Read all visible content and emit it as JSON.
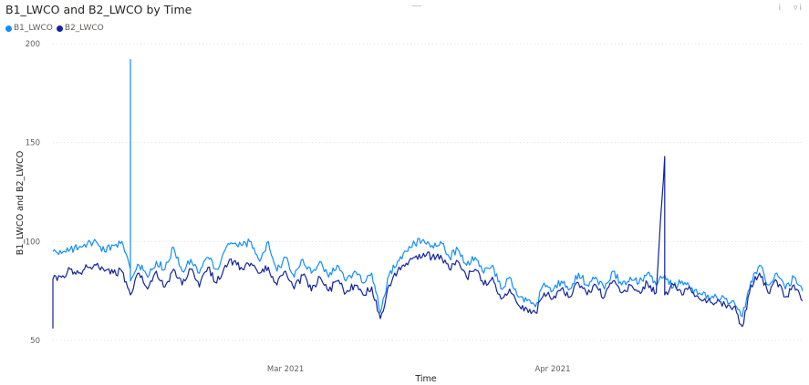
{
  "chart_data": {
    "type": "line",
    "title": "B1_LWCO and B2_LWCO by Time",
    "xlabel": "Time",
    "ylabel": "B1_LWCO and B2_LWCO",
    "ylim": [
      50,
      200
    ],
    "xlim": [
      "2021-02-02",
      "2021-04-30"
    ],
    "y_ticks": [
      "50",
      "100",
      "150",
      "200"
    ],
    "x_ticks": [
      {
        "date": "2021-03-01",
        "label": "Mar 2021"
      },
      {
        "date": "2021-04-01",
        "label": "Apr 2021"
      }
    ],
    "grid": true,
    "legend_position": "top-left",
    "series": [
      {
        "name": "B1_LWCO",
        "color": "#118dff",
        "points": [
          [
            "2021-02-02",
            95
          ],
          [
            "2021-02-03",
            94
          ],
          [
            "2021-02-04",
            96
          ],
          [
            "2021-02-05",
            97
          ],
          [
            "2021-02-06",
            99
          ],
          [
            "2021-02-07",
            100
          ],
          [
            "2021-02-08",
            95
          ],
          [
            "2021-02-09",
            98
          ],
          [
            "2021-02-10",
            100
          ],
          [
            "2021-02-11",
            86
          ],
          [
            "2021-02-11",
            192
          ],
          [
            "2021-02-11",
            80
          ],
          [
            "2021-02-12",
            88
          ],
          [
            "2021-02-13",
            82
          ],
          [
            "2021-02-14",
            90
          ],
          [
            "2021-02-15",
            86
          ],
          [
            "2021-02-16",
            97
          ],
          [
            "2021-02-17",
            85
          ],
          [
            "2021-02-18",
            91
          ],
          [
            "2021-02-19",
            84
          ],
          [
            "2021-02-20",
            92
          ],
          [
            "2021-02-21",
            86
          ],
          [
            "2021-02-22",
            96
          ],
          [
            "2021-02-23",
            99
          ],
          [
            "2021-02-24",
            98
          ],
          [
            "2021-02-25",
            100
          ],
          [
            "2021-02-26",
            90
          ],
          [
            "2021-02-27",
            100
          ],
          [
            "2021-02-28",
            85
          ],
          [
            "2021-03-01",
            92
          ],
          [
            "2021-03-02",
            82
          ],
          [
            "2021-03-03",
            91
          ],
          [
            "2021-03-04",
            84
          ],
          [
            "2021-03-05",
            90
          ],
          [
            "2021-03-06",
            82
          ],
          [
            "2021-03-07",
            88
          ],
          [
            "2021-03-08",
            80
          ],
          [
            "2021-03-09",
            85
          ],
          [
            "2021-03-10",
            79
          ],
          [
            "2021-03-11",
            84
          ],
          [
            "2021-03-12",
            64
          ],
          [
            "2021-03-13",
            83
          ],
          [
            "2021-03-14",
            90
          ],
          [
            "2021-03-15",
            95
          ],
          [
            "2021-03-16",
            99
          ],
          [
            "2021-03-17",
            101
          ],
          [
            "2021-03-18",
            98
          ],
          [
            "2021-03-19",
            100
          ],
          [
            "2021-03-20",
            92
          ],
          [
            "2021-03-21",
            96
          ],
          [
            "2021-03-22",
            88
          ],
          [
            "2021-03-23",
            92
          ],
          [
            "2021-03-24",
            84
          ],
          [
            "2021-03-25",
            88
          ],
          [
            "2021-03-26",
            76
          ],
          [
            "2021-03-27",
            82
          ],
          [
            "2021-03-28",
            72
          ],
          [
            "2021-03-29",
            70
          ],
          [
            "2021-03-30",
            67
          ],
          [
            "2021-03-31",
            79
          ],
          [
            "2021-04-01",
            75
          ],
          [
            "2021-04-02",
            80
          ],
          [
            "2021-04-03",
            76
          ],
          [
            "2021-04-04",
            84
          ],
          [
            "2021-04-05",
            78
          ],
          [
            "2021-04-06",
            82
          ],
          [
            "2021-04-07",
            76
          ],
          [
            "2021-04-08",
            85
          ],
          [
            "2021-04-09",
            78
          ],
          [
            "2021-04-10",
            82
          ],
          [
            "2021-04-11",
            79
          ],
          [
            "2021-04-12",
            84
          ],
          [
            "2021-04-13",
            78
          ],
          [
            "2021-04-14",
            83
          ],
          [
            "2021-04-15",
            77
          ],
          [
            "2021-04-16",
            80
          ],
          [
            "2021-04-17",
            76
          ],
          [
            "2021-04-18",
            74
          ],
          [
            "2021-04-19",
            73
          ],
          [
            "2021-04-20",
            72
          ],
          [
            "2021-04-21",
            71
          ],
          [
            "2021-04-22",
            70
          ],
          [
            "2021-04-23",
            62
          ],
          [
            "2021-04-24",
            80
          ],
          [
            "2021-04-25",
            88
          ],
          [
            "2021-04-26",
            78
          ],
          [
            "2021-04-27",
            84
          ],
          [
            "2021-04-28",
            76
          ],
          [
            "2021-04-29",
            82
          ],
          [
            "2021-04-30",
            75
          ]
        ]
      },
      {
        "name": "B2_LWCO",
        "color": "#12239e",
        "points": [
          [
            "2021-02-02",
            56
          ],
          [
            "2021-02-02",
            81
          ],
          [
            "2021-02-03",
            82
          ],
          [
            "2021-02-04",
            86
          ],
          [
            "2021-02-05",
            84
          ],
          [
            "2021-02-06",
            87
          ],
          [
            "2021-02-07",
            88
          ],
          [
            "2021-02-08",
            85
          ],
          [
            "2021-02-09",
            84
          ],
          [
            "2021-02-10",
            85
          ],
          [
            "2021-02-11",
            73
          ],
          [
            "2021-02-12",
            84
          ],
          [
            "2021-02-13",
            76
          ],
          [
            "2021-02-14",
            85
          ],
          [
            "2021-02-15",
            77
          ],
          [
            "2021-02-16",
            86
          ],
          [
            "2021-02-17",
            78
          ],
          [
            "2021-02-18",
            86
          ],
          [
            "2021-02-19",
            77
          ],
          [
            "2021-02-20",
            87
          ],
          [
            "2021-02-21",
            79
          ],
          [
            "2021-02-22",
            88
          ],
          [
            "2021-02-23",
            90
          ],
          [
            "2021-02-24",
            86
          ],
          [
            "2021-02-25",
            89
          ],
          [
            "2021-02-26",
            84
          ],
          [
            "2021-02-27",
            87
          ],
          [
            "2021-02-28",
            78
          ],
          [
            "2021-03-01",
            85
          ],
          [
            "2021-03-02",
            76
          ],
          [
            "2021-03-03",
            83
          ],
          [
            "2021-03-04",
            75
          ],
          [
            "2021-03-05",
            82
          ],
          [
            "2021-03-06",
            75
          ],
          [
            "2021-03-07",
            80
          ],
          [
            "2021-03-08",
            74
          ],
          [
            "2021-03-09",
            78
          ],
          [
            "2021-03-10",
            73
          ],
          [
            "2021-03-11",
            77
          ],
          [
            "2021-03-12",
            61
          ],
          [
            "2021-03-13",
            78
          ],
          [
            "2021-03-14",
            85
          ],
          [
            "2021-03-15",
            89
          ],
          [
            "2021-03-16",
            92
          ],
          [
            "2021-03-17",
            94
          ],
          [
            "2021-03-18",
            92
          ],
          [
            "2021-03-19",
            93
          ],
          [
            "2021-03-20",
            86
          ],
          [
            "2021-03-21",
            90
          ],
          [
            "2021-03-22",
            82
          ],
          [
            "2021-03-23",
            86
          ],
          [
            "2021-03-24",
            78
          ],
          [
            "2021-03-25",
            82
          ],
          [
            "2021-03-26",
            71
          ],
          [
            "2021-03-27",
            76
          ],
          [
            "2021-03-28",
            68
          ],
          [
            "2021-03-29",
            66
          ],
          [
            "2021-03-30",
            64
          ],
          [
            "2021-03-31",
            74
          ],
          [
            "2021-04-01",
            71
          ],
          [
            "2021-04-02",
            76
          ],
          [
            "2021-04-03",
            72
          ],
          [
            "2021-04-04",
            79
          ],
          [
            "2021-04-05",
            73
          ],
          [
            "2021-04-06",
            78
          ],
          [
            "2021-04-07",
            72
          ],
          [
            "2021-04-08",
            80
          ],
          [
            "2021-04-09",
            74
          ],
          [
            "2021-04-10",
            78
          ],
          [
            "2021-04-11",
            75
          ],
          [
            "2021-04-12",
            79
          ],
          [
            "2021-04-13",
            74
          ],
          [
            "2021-04-14",
            143
          ],
          [
            "2021-04-14",
            73
          ],
          [
            "2021-04-15",
            78
          ],
          [
            "2021-04-16",
            73
          ],
          [
            "2021-04-17",
            76
          ],
          [
            "2021-04-18",
            71
          ],
          [
            "2021-04-19",
            70
          ],
          [
            "2021-04-20",
            69
          ],
          [
            "2021-04-21",
            68
          ],
          [
            "2021-04-22",
            67
          ],
          [
            "2021-04-23",
            57
          ],
          [
            "2021-04-24",
            78
          ],
          [
            "2021-04-25",
            84
          ],
          [
            "2021-04-26",
            74
          ],
          [
            "2021-04-27",
            80
          ],
          [
            "2021-04-28",
            72
          ],
          [
            "2021-04-29",
            78
          ],
          [
            "2021-04-30",
            70
          ]
        ]
      }
    ]
  },
  "header": {
    "info_icon": "info-icon",
    "filter_icon": "filter-icon"
  }
}
